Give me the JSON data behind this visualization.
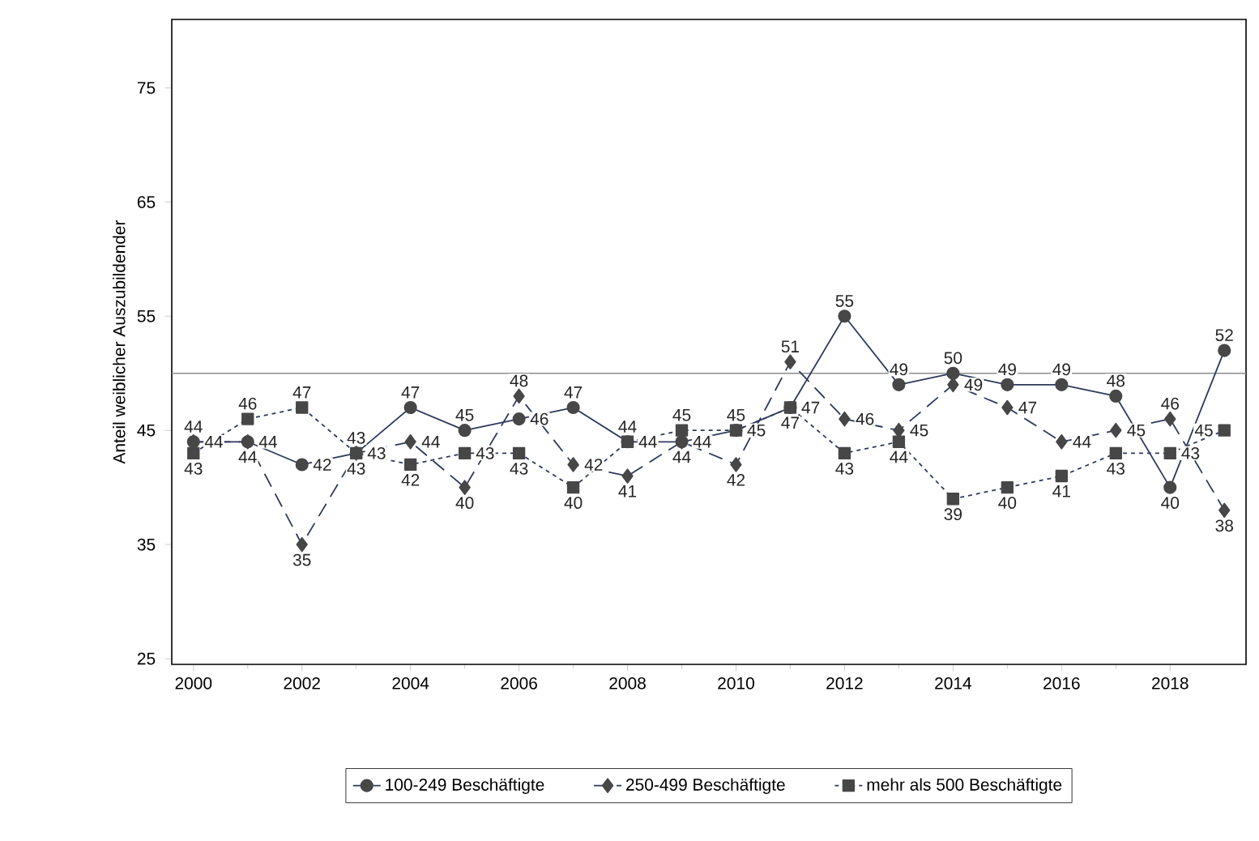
{
  "chart_data": {
    "type": "line",
    "ylabel": "Anteil weiblicher Auszubildender",
    "x": [
      2000,
      2001,
      2002,
      2003,
      2004,
      2005,
      2006,
      2007,
      2008,
      2009,
      2010,
      2011,
      2012,
      2013,
      2014,
      2015,
      2016,
      2017,
      2018,
      2019
    ],
    "series": [
      {
        "name": "100-249 Beschäftigte",
        "color": "#2e3a5c",
        "marker": "circle",
        "line_style": "solid",
        "values": [
          44,
          44,
          42,
          43,
          47,
          45,
          46,
          47,
          44,
          44,
          45,
          47,
          55,
          49,
          50,
          49,
          49,
          48,
          40,
          52
        ]
      },
      {
        "name": "250-499 Beschäftigte",
        "color": "#2e3a5c",
        "marker": "diamond",
        "line_style": "dashed",
        "values": [
          44,
          44,
          35,
          43,
          44,
          40,
          48,
          42,
          41,
          44,
          42,
          51,
          46,
          45,
          49,
          47,
          44,
          45,
          46,
          38
        ]
      },
      {
        "name": "mehr als 500 Beschäftigte",
        "color": "#2e3a5c",
        "marker": "square",
        "line_style": "dotted",
        "values": [
          43,
          46,
          47,
          43,
          42,
          43,
          43,
          40,
          44,
          45,
          45,
          47,
          43,
          44,
          39,
          40,
          41,
          43,
          43,
          45
        ]
      }
    ],
    "data_labels": true,
    "xlim": [
      1999.6,
      2019.4
    ],
    "xticks": [
      2000,
      2002,
      2004,
      2006,
      2008,
      2010,
      2012,
      2014,
      2016,
      2018
    ],
    "ylim": [
      24.5,
      81
    ],
    "yticks": [
      25,
      35,
      45,
      55,
      65,
      75
    ],
    "ref_lines": [
      {
        "axis": "y",
        "value": 50,
        "color": "#8c8c8c"
      }
    ],
    "legend": "bottom",
    "grid": false
  }
}
